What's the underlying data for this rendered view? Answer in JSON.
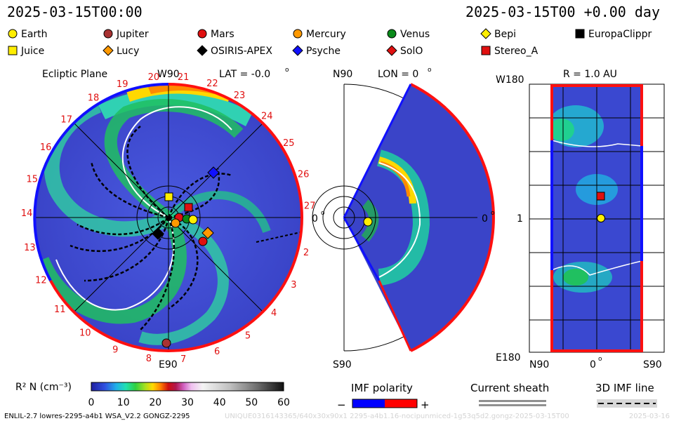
{
  "header": {
    "date_left": "2025-03-15T00:00",
    "date_right": "2025-03-15T00 +0.00 day"
  },
  "legend": [
    {
      "name": "Earth",
      "shape": "circle",
      "color": "#ffee00"
    },
    {
      "name": "Jupiter",
      "shape": "circle",
      "color": "#a83232"
    },
    {
      "name": "Mars",
      "shape": "circle",
      "color": "#e01010"
    },
    {
      "name": "Mercury",
      "shape": "circle",
      "color": "#ff9900"
    },
    {
      "name": "Venus",
      "shape": "circle",
      "color": "#0a8a1a"
    },
    {
      "name": "Bepi",
      "shape": "diamond",
      "color": "#ffee00"
    },
    {
      "name": "EuropaClippr",
      "shape": "square",
      "color": "#000000"
    },
    {
      "name": "Juice",
      "shape": "square",
      "color": "#ffee00"
    },
    {
      "name": "Lucy",
      "shape": "diamond",
      "color": "#ff9900"
    },
    {
      "name": "OSIRIS-APEX",
      "shape": "diamond",
      "color": "#000000"
    },
    {
      "name": "Psyche",
      "shape": "diamond",
      "color": "#1010ff"
    },
    {
      "name": "SolO",
      "shape": "diamond",
      "color": "#e01010"
    },
    {
      "name": "Stereo_A",
      "shape": "square",
      "color": "#e01010"
    }
  ],
  "panels": {
    "ecliptic": {
      "title": "Ecliptic Plane",
      "top_label": "W90",
      "lat_label": "LAT = -0.0",
      "bottom_label": "E90",
      "zero_label": "0",
      "sector_numbers": [
        "20",
        "21",
        "22",
        "23",
        "24",
        "25",
        "26",
        "27",
        "18",
        "19",
        "17",
        "16",
        "15",
        "14",
        "13",
        "12",
        "11",
        "10",
        "9",
        "8",
        "7",
        "6",
        "5",
        "4",
        "3",
        "2"
      ]
    },
    "meridional": {
      "top_label": "N90",
      "lon_label": "LON = 0",
      "bottom_label": "S90",
      "zero_label": "0"
    },
    "radial": {
      "title": "R = 1.0 AU",
      "top_label": "W180",
      "bottom_label": "E180",
      "left_label": "1",
      "axis_left": "N90",
      "axis_mid": "0",
      "axis_right": "S90"
    }
  },
  "colorbar": {
    "label": "R² N (cm⁻³)",
    "ticks": [
      "0",
      "10",
      "20",
      "30",
      "40",
      "50",
      "60"
    ]
  },
  "keys": {
    "imf_polarity": "IMF polarity",
    "minus": "−",
    "plus": "+",
    "current_sheath": "Current sheath",
    "imf_line": "3D IMF line",
    "neg_color": "#0000ff",
    "pos_color": "#ff0000"
  },
  "footer": {
    "model": "ENLIL-2.7 lowres-2295-a4b1 WSA_V2.2 GONGZ-2295",
    "run_id": "UNIQUE0316143365/640x30x90x1 2295-a4b1.16-nocipunmiced-1g53q5d2.gongz-2025-03-15T00",
    "stamp": "2025-03-16"
  },
  "chart_data": {
    "type": "heatmap",
    "quantity": "R² N",
    "units": "cm⁻³",
    "range": [
      0,
      60
    ],
    "colormap_stops": [
      "#2a2aa8",
      "#3a5ad8",
      "#2aa8e0",
      "#2ae0b0",
      "#30d040",
      "#a8e020",
      "#ffd800",
      "#ff8000",
      "#d01010",
      "#b03090",
      "#e090e0",
      "#ffffff",
      "#c0c0c0",
      "#808080",
      "#202020"
    ],
    "time": "2025-03-15T00:00",
    "bodies_ecliptic": [
      {
        "name": "Earth",
        "r_au": 1.0,
        "lon_deg": 0
      },
      {
        "name": "Mercury",
        "r_au": 0.45,
        "lon_deg": -40
      },
      {
        "name": "Venus",
        "r_au": 0.72,
        "lon_deg": 10
      },
      {
        "name": "Mars",
        "r_au": 1.35,
        "lon_deg": -20
      },
      {
        "name": "Jupiter",
        "r_au": 4.9,
        "lon_deg": -88
      }
    ]
  }
}
